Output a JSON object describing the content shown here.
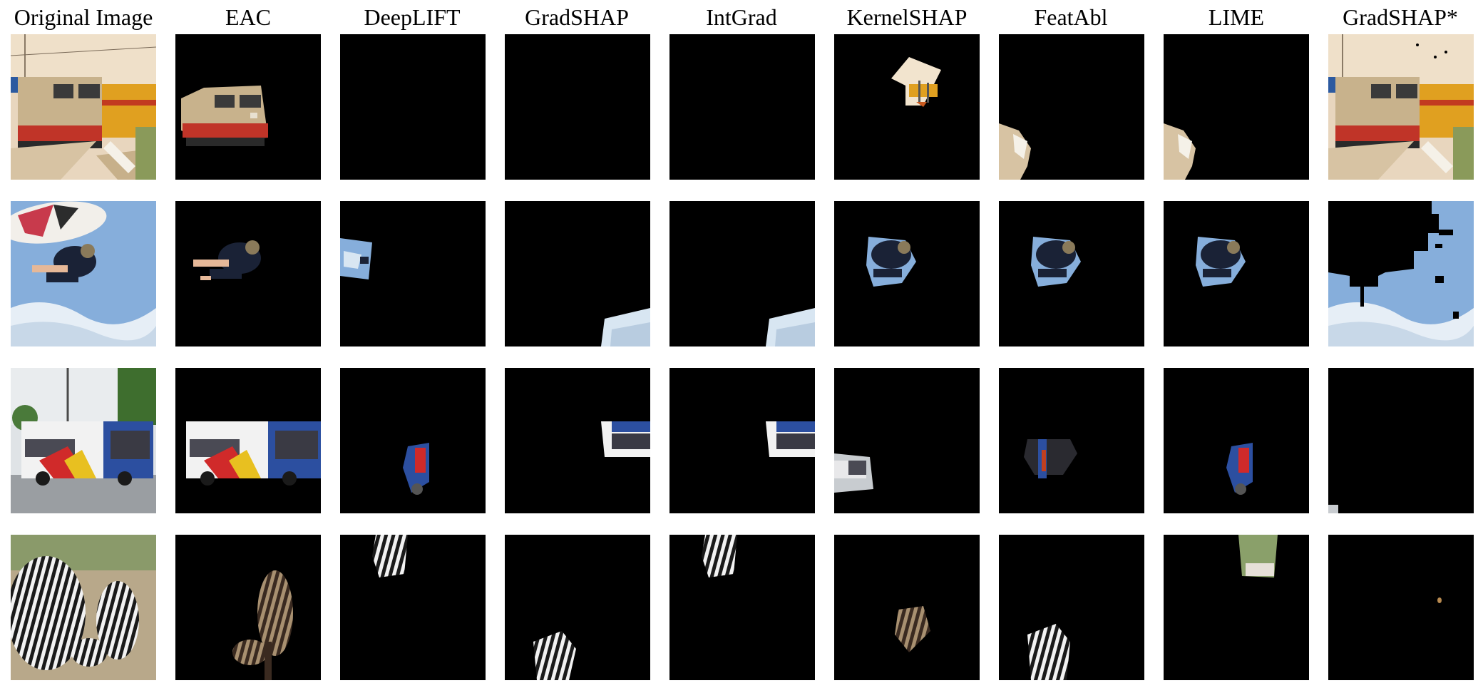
{
  "figure": {
    "columns": [
      "Original Image",
      "EAC",
      "DeepLIFT",
      "GradSHAP",
      "IntGrad",
      "KernelSHAP",
      "FeatAbl",
      "LIME",
      "GradSHAP*"
    ]
  }
}
